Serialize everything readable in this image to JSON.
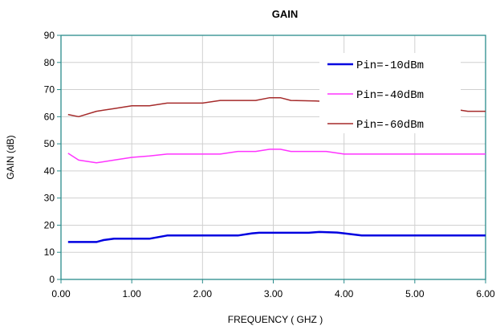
{
  "chart_data": {
    "type": "line",
    "title": "GAIN",
    "xlabel": "FREQUENCY ( GHZ )",
    "ylabel": "GAIN (dB)",
    "xlim": [
      0,
      6
    ],
    "ylim": [
      0,
      90
    ],
    "x_ticks": [
      "0.00",
      "1.00",
      "2.00",
      "3.00",
      "4.00",
      "5.00",
      "6.00"
    ],
    "y_ticks": [
      "0",
      "10",
      "20",
      "30",
      "40",
      "50",
      "60",
      "70",
      "80",
      "90"
    ],
    "x_tick_values": [
      0,
      1,
      2,
      3,
      4,
      5,
      6
    ],
    "y_tick_values": [
      0,
      10,
      20,
      30,
      40,
      50,
      60,
      70,
      80,
      90
    ],
    "grid": true,
    "legend_position": "top-right",
    "series": [
      {
        "name": "Pin=-10dBm",
        "color": "#0000e0",
        "x": [
          0.1,
          0.5,
          0.6,
          0.75,
          1.25,
          1.5,
          2.5,
          2.7,
          2.8,
          3.5,
          3.65,
          3.9,
          4.0,
          4.25,
          6.0
        ],
        "y": [
          13.8,
          13.8,
          14.5,
          15.0,
          15.0,
          16.2,
          16.2,
          17.0,
          17.2,
          17.2,
          17.5,
          17.3,
          17.0,
          16.2,
          16.2
        ]
      },
      {
        "name": "Pin=-40dBm",
        "color": "#ff33ff",
        "x": [
          0.1,
          0.25,
          0.5,
          0.75,
          1.0,
          1.25,
          1.5,
          2.25,
          2.5,
          2.75,
          2.95,
          3.1,
          3.25,
          3.75,
          4.0,
          6.0
        ],
        "y": [
          46.5,
          44.0,
          43.0,
          44.0,
          45.0,
          45.5,
          46.2,
          46.2,
          47.2,
          47.2,
          48.0,
          48.0,
          47.2,
          47.2,
          46.2,
          46.2
        ]
      },
      {
        "name": "Pin=-60dBm",
        "color": "#a52a2a",
        "x": [
          0.1,
          0.25,
          0.5,
          0.75,
          1.0,
          1.25,
          1.5,
          2.0,
          2.25,
          2.75,
          2.95,
          3.1,
          3.25,
          3.6,
          5.5,
          5.75,
          6.0
        ],
        "y": [
          60.8,
          60.0,
          62.0,
          63.0,
          64.0,
          64.0,
          65.0,
          65.0,
          66.0,
          66.0,
          67.0,
          67.0,
          66.0,
          65.8,
          63.0,
          62.0,
          62.0
        ]
      }
    ]
  }
}
